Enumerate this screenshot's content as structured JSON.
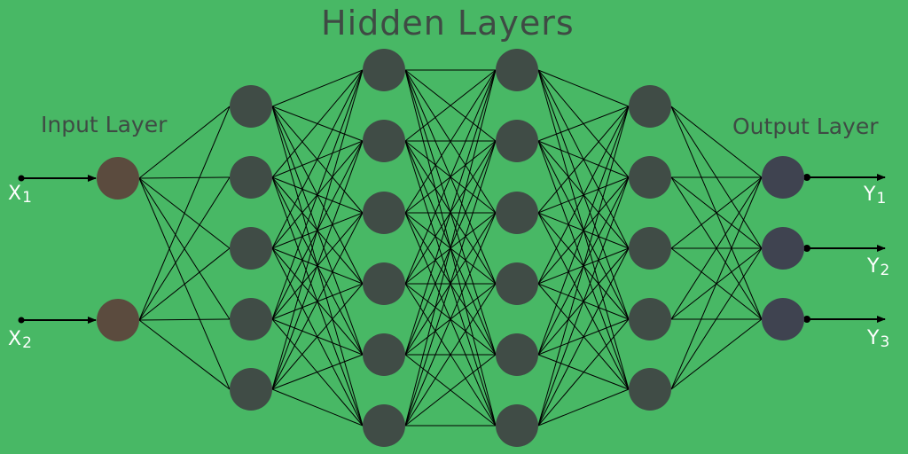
{
  "titles": {
    "hidden": "Hidden Layers",
    "input": "Input Layer",
    "output": "Output Layer"
  },
  "inputs": [
    {
      "letter": "X",
      "sub": "1"
    },
    {
      "letter": "X",
      "sub": "2"
    }
  ],
  "outputs": [
    {
      "letter": "Y",
      "sub": "1"
    },
    {
      "letter": "Y",
      "sub": "2"
    },
    {
      "letter": "Y",
      "sub": "3"
    }
  ],
  "network": {
    "layer_sizes": [
      2,
      5,
      6,
      6,
      5,
      3
    ],
    "connectivity": "fully-connected"
  },
  "colors": {
    "background": "#48b865",
    "input_node": "#5b4b3e",
    "hidden_node": "#404c46",
    "output_node": "#3f4350",
    "edge": "#000000",
    "io_text": "#ffffff",
    "title_text": "#3f4a44"
  }
}
